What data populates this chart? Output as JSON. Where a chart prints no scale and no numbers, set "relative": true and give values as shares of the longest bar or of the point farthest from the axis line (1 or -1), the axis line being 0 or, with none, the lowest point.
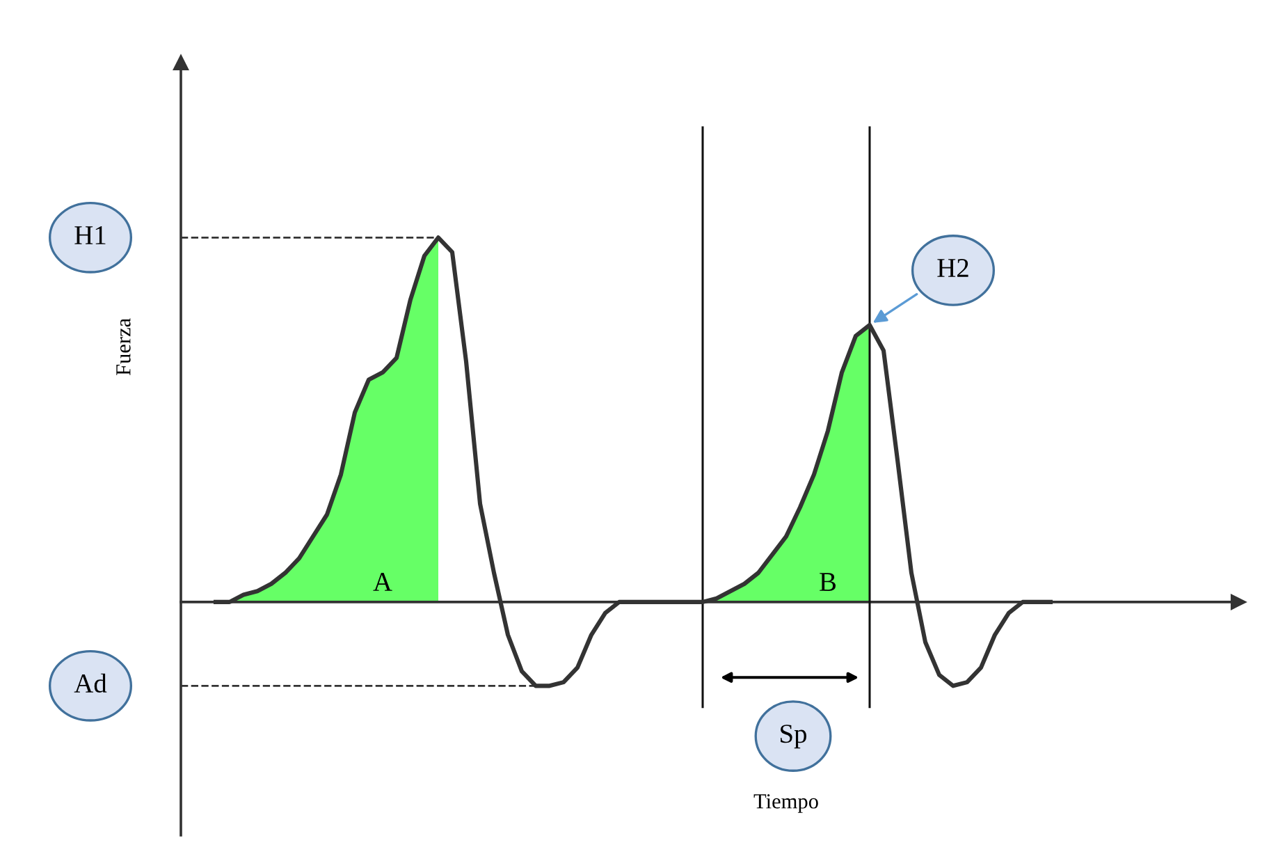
{
  "chart_data": {
    "type": "line",
    "relative": true,
    "ylabel": "Fuerza",
    "categories": [
      null,
      null,
      null,
      null,
      null,
      null,
      null,
      null,
      null,
      null,
      null,
      null,
      null,
      null,
      null,
      null,
      null,
      null,
      null,
      null,
      null,
      null,
      null,
      null,
      null,
      null,
      null,
      null,
      null,
      null,
      null,
      null,
      null,
      null,
      null,
      null,
      null,
      null,
      null,
      null,
      null,
      null,
      null,
      null,
      null,
      null,
      null,
      null,
      null,
      null,
      null,
      null,
      null,
      null,
      null,
      null,
      null,
      null,
      null,
      null,
      null
    ],
    "series": [
      {
        "color": "#333333",
        "values": [
          0,
          0,
          0.02,
          0.03,
          0.05,
          0.08,
          0.12,
          0.18,
          0.24,
          0.35,
          0.52,
          0.61,
          0.63,
          0.67,
          0.83,
          0.95,
          1,
          0.96,
          0.66,
          0.27,
          0.08,
          -0.09,
          -0.19,
          -0.23,
          -0.23,
          -0.22,
          -0.18,
          -0.09,
          -0.03,
          0,
          0,
          0,
          0,
          0,
          0,
          0,
          0.01,
          0.03,
          0.05,
          0.08,
          0.13,
          0.18,
          0.26,
          0.35,
          0.47,
          0.63,
          0.73,
          0.76,
          0.69,
          0.39,
          0.08,
          -0.11,
          -0.2,
          -0.23,
          -0.22,
          -0.18,
          -0.09,
          -0.03,
          0,
          0,
          0
        ],
        "lower": [
          0,
          0,
          0,
          0,
          0,
          0,
          0,
          0,
          0,
          0,
          0,
          0,
          0,
          0,
          0,
          0,
          0,
          null,
          null,
          null,
          null,
          null,
          null,
          null,
          null,
          null,
          null,
          null,
          null,
          null,
          null,
          null,
          null,
          null,
          null,
          0,
          0,
          0,
          0,
          0,
          0,
          0,
          0,
          0,
          0,
          0,
          0,
          0,
          null,
          null,
          null,
          null,
          null,
          null,
          null,
          null,
          null,
          null,
          null,
          null,
          null
        ],
        "upper": [
          0,
          0,
          0.02,
          0.03,
          0.05,
          0.08,
          0.12,
          0.18,
          0.24,
          0.35,
          0.52,
          0.61,
          0.63,
          0.67,
          0.83,
          0.95,
          1,
          null,
          null,
          null,
          null,
          null,
          null,
          null,
          null,
          null,
          null,
          null,
          null,
          null,
          null,
          null,
          null,
          null,
          null,
          0,
          0.01,
          0.03,
          0.05,
          0.08,
          0.13,
          0.18,
          0.26,
          0.35,
          0.47,
          0.63,
          0.73,
          0.76,
          null,
          null,
          null,
          null,
          null,
          null,
          null,
          null,
          null,
          null,
          null,
          null,
          null
        ]
      }
    ],
    "ref_lines": [
      {
        "axis": "y",
        "value": 1,
        "label": "H1",
        "line_style": "dashed"
      },
      {
        "axis": "y",
        "value": -0.23,
        "label": "Ad",
        "line_style": "dashed"
      }
    ],
    "annotations": [
      "A",
      "B",
      "H2",
      "Sp",
      "Tiempo"
    ]
  }
}
